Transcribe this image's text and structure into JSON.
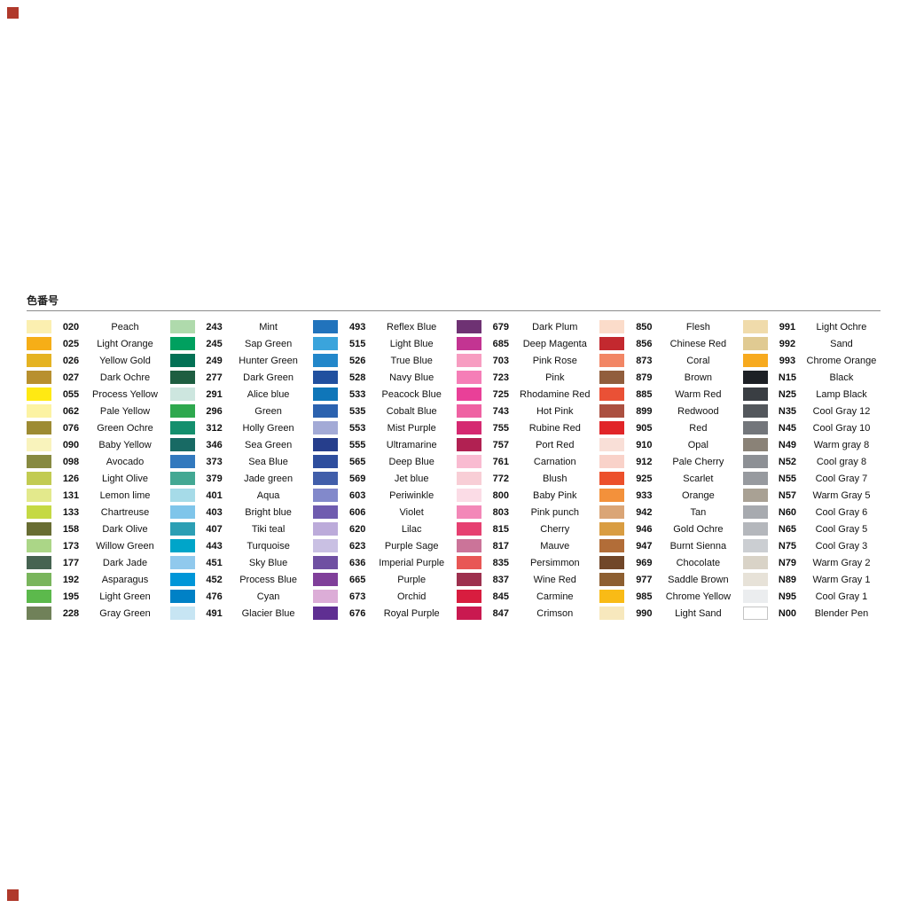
{
  "page": {
    "background": "#ffffff",
    "corner_mark_color": "#b0392b"
  },
  "chart_data": {
    "type": "table",
    "title": "色番号",
    "columns": [
      "code",
      "name",
      "color"
    ],
    "legend_position": "none",
    "groups": [
      [
        {
          "code": "020",
          "name": "Peach",
          "color": "#fbefb0"
        },
        {
          "code": "025",
          "name": "Light Orange",
          "color": "#f6ae17"
        },
        {
          "code": "026",
          "name": "Yellow Gold",
          "color": "#e5b322"
        },
        {
          "code": "027",
          "name": "Dark Ochre",
          "color": "#b8902f"
        },
        {
          "code": "055",
          "name": "Process Yellow",
          "color": "#ffe913"
        },
        {
          "code": "062",
          "name": "Pale Yellow",
          "color": "#fcf3a3"
        },
        {
          "code": "076",
          "name": "Green Ochre",
          "color": "#9d8b33"
        },
        {
          "code": "090",
          "name": "Baby Yellow",
          "color": "#f9f3bc"
        },
        {
          "code": "098",
          "name": "Avocado",
          "color": "#878a41"
        },
        {
          "code": "126",
          "name": "Light Olive",
          "color": "#c2cb51"
        },
        {
          "code": "131",
          "name": "Lemon lime",
          "color": "#e3e98c"
        },
        {
          "code": "133",
          "name": "Chartreuse",
          "color": "#c5d944"
        },
        {
          "code": "158",
          "name": "Dark Olive",
          "color": "#686d33"
        },
        {
          "code": "173",
          "name": "Willow Green",
          "color": "#abd687"
        },
        {
          "code": "177",
          "name": "Dark Jade",
          "color": "#466351"
        },
        {
          "code": "192",
          "name": "Asparagus",
          "color": "#79b55c"
        },
        {
          "code": "195",
          "name": "Light Green",
          "color": "#5cb94c"
        },
        {
          "code": "228",
          "name": "Gray Green",
          "color": "#708159"
        }
      ],
      [
        {
          "code": "243",
          "name": "Mint",
          "color": "#afdaac"
        },
        {
          "code": "245",
          "name": "Sap Green",
          "color": "#00a05f"
        },
        {
          "code": "249",
          "name": "Hunter Green",
          "color": "#037155"
        },
        {
          "code": "277",
          "name": "Dark Green",
          "color": "#1e5e41"
        },
        {
          "code": "291",
          "name": "Alice blue",
          "color": "#cde6df"
        },
        {
          "code": "296",
          "name": "Green",
          "color": "#2ea84e"
        },
        {
          "code": "312",
          "name": "Holly Green",
          "color": "#148f6d"
        },
        {
          "code": "346",
          "name": "Sea Green",
          "color": "#186a64"
        },
        {
          "code": "373",
          "name": "Sea Blue",
          "color": "#3279be"
        },
        {
          "code": "379",
          "name": "Jade green",
          "color": "#43a893"
        },
        {
          "code": "401",
          "name": "Aqua",
          "color": "#a6dbe8"
        },
        {
          "code": "403",
          "name": "Bright blue",
          "color": "#7fc5ea"
        },
        {
          "code": "407",
          "name": "Tiki teal",
          "color": "#2c9fb4"
        },
        {
          "code": "443",
          "name": "Turquoise",
          "color": "#00a5c9"
        },
        {
          "code": "451",
          "name": "Sky Blue",
          "color": "#90c9ed"
        },
        {
          "code": "452",
          "name": "Process Blue",
          "color": "#0096d8"
        },
        {
          "code": "476",
          "name": "Cyan",
          "color": "#0081c6"
        },
        {
          "code": "491",
          "name": "Glacier Blue",
          "color": "#c7e5f3"
        }
      ],
      [
        {
          "code": "493",
          "name": "Reflex Blue",
          "color": "#2173bc"
        },
        {
          "code": "515",
          "name": "Light Blue",
          "color": "#3aa4dc"
        },
        {
          "code": "526",
          "name": "True Blue",
          "color": "#2287ca"
        },
        {
          "code": "528",
          "name": "Navy Blue",
          "color": "#21509f"
        },
        {
          "code": "533",
          "name": "Peacock Blue",
          "color": "#0f76b9"
        },
        {
          "code": "535",
          "name": "Cobalt Blue",
          "color": "#2b62af"
        },
        {
          "code": "553",
          "name": "Mist Purple",
          "color": "#a3aad6"
        },
        {
          "code": "555",
          "name": "Ultramarine",
          "color": "#263e8c"
        },
        {
          "code": "565",
          "name": "Deep Blue",
          "color": "#2e4e9e"
        },
        {
          "code": "569",
          "name": "Jet blue",
          "color": "#415eaa"
        },
        {
          "code": "603",
          "name": "Periwinkle",
          "color": "#8289cb"
        },
        {
          "code": "606",
          "name": "Violet",
          "color": "#6f5caf"
        },
        {
          "code": "620",
          "name": "Lilac",
          "color": "#bcabda"
        },
        {
          "code": "623",
          "name": "Purple Sage",
          "color": "#c9c0e3"
        },
        {
          "code": "636",
          "name": "Imperial Purple",
          "color": "#6f50a2"
        },
        {
          "code": "665",
          "name": "Purple",
          "color": "#803f9a"
        },
        {
          "code": "673",
          "name": "Orchid",
          "color": "#dcadd7"
        },
        {
          "code": "676",
          "name": "Royal Purple",
          "color": "#5f2f92"
        }
      ],
      [
        {
          "code": "679",
          "name": "Dark Plum",
          "color": "#6e3273"
        },
        {
          "code": "685",
          "name": "Deep Magenta",
          "color": "#c33492"
        },
        {
          "code": "703",
          "name": "Pink Rose",
          "color": "#f79dc1"
        },
        {
          "code": "723",
          "name": "Pink",
          "color": "#f57eb7"
        },
        {
          "code": "725",
          "name": "Rhodamine Red",
          "color": "#e94098"
        },
        {
          "code": "743",
          "name": "Hot Pink",
          "color": "#ef62a3"
        },
        {
          "code": "755",
          "name": "Rubine Red",
          "color": "#d52971"
        },
        {
          "code": "757",
          "name": "Port Red",
          "color": "#b12152"
        },
        {
          "code": "761",
          "name": "Carnation",
          "color": "#f9bbd1"
        },
        {
          "code": "772",
          "name": "Blush",
          "color": "#f8ced6"
        },
        {
          "code": "800",
          "name": "Baby Pink",
          "color": "#fbdce6"
        },
        {
          "code": "803",
          "name": "Pink punch",
          "color": "#f388b8"
        },
        {
          "code": "815",
          "name": "Cherry",
          "color": "#e64071"
        },
        {
          "code": "817",
          "name": "Mauve",
          "color": "#cb7499"
        },
        {
          "code": "835",
          "name": "Persimmon",
          "color": "#e85755"
        },
        {
          "code": "837",
          "name": "Wine Red",
          "color": "#9d304e"
        },
        {
          "code": "845",
          "name": "Carmine",
          "color": "#d81d3f"
        },
        {
          "code": "847",
          "name": "Crimson",
          "color": "#c91950"
        }
      ],
      [
        {
          "code": "850",
          "name": "Flesh",
          "color": "#fbdcca"
        },
        {
          "code": "856",
          "name": "Chinese Red",
          "color": "#c3292f"
        },
        {
          "code": "873",
          "name": "Coral",
          "color": "#f28665"
        },
        {
          "code": "879",
          "name": "Brown",
          "color": "#915e3d"
        },
        {
          "code": "885",
          "name": "Warm Red",
          "color": "#ea5136"
        },
        {
          "code": "899",
          "name": "Redwood",
          "color": "#ab5040"
        },
        {
          "code": "905",
          "name": "Red",
          "color": "#e12528"
        },
        {
          "code": "910",
          "name": "Opal",
          "color": "#f9dfd7"
        },
        {
          "code": "912",
          "name": "Pale Cherry",
          "color": "#f9d2c9"
        },
        {
          "code": "925",
          "name": "Scarlet",
          "color": "#ec502b"
        },
        {
          "code": "933",
          "name": "Orange",
          "color": "#f3913b"
        },
        {
          "code": "942",
          "name": "Tan",
          "color": "#daa576"
        },
        {
          "code": "946",
          "name": "Gold Ochre",
          "color": "#d99d42"
        },
        {
          "code": "947",
          "name": "Burnt Sienna",
          "color": "#b26d38"
        },
        {
          "code": "969",
          "name": "Chocolate",
          "color": "#714729"
        },
        {
          "code": "977",
          "name": "Saddle Brown",
          "color": "#8d5f31"
        },
        {
          "code": "985",
          "name": "Chrome Yellow",
          "color": "#f9bb16"
        },
        {
          "code": "990",
          "name": "Light Sand",
          "color": "#f7e8bd"
        }
      ],
      [
        {
          "code": "991",
          "name": "Light Ochre",
          "color": "#f0dbab"
        },
        {
          "code": "992",
          "name": "Sand",
          "color": "#e0ca92"
        },
        {
          "code": "993",
          "name": "Chrome Orange",
          "color": "#f7aa1e"
        },
        {
          "code": "N15",
          "name": "Black",
          "color": "#1d2025"
        },
        {
          "code": "N25",
          "name": "Lamp Black",
          "color": "#3a3e43"
        },
        {
          "code": "N35",
          "name": "Cool Gray 12",
          "color": "#53575c"
        },
        {
          "code": "N45",
          "name": "Cool Gray 10",
          "color": "#73767b"
        },
        {
          "code": "N49",
          "name": "Warm gray 8",
          "color": "#8a8277"
        },
        {
          "code": "N52",
          "name": "Cool gray 8",
          "color": "#8d9095"
        },
        {
          "code": "N55",
          "name": "Cool Gray 7",
          "color": "#979a9f"
        },
        {
          "code": "N57",
          "name": "Warm Gray 5",
          "color": "#a9a194"
        },
        {
          "code": "N60",
          "name": "Cool Gray 6",
          "color": "#a7aaaf"
        },
        {
          "code": "N65",
          "name": "Cool Gray 5",
          "color": "#b4b7bc"
        },
        {
          "code": "N75",
          "name": "Cool Gray 3",
          "color": "#cbced2"
        },
        {
          "code": "N79",
          "name": "Warm Gray 2",
          "color": "#d9d3c7"
        },
        {
          "code": "N89",
          "name": "Warm Gray 1",
          "color": "#e7e2d8"
        },
        {
          "code": "N95",
          "name": "Cool Gray 1",
          "color": "#ebedef"
        },
        {
          "code": "N00",
          "name": "Blender Pen",
          "color": "#ffffff"
        }
      ]
    ]
  }
}
